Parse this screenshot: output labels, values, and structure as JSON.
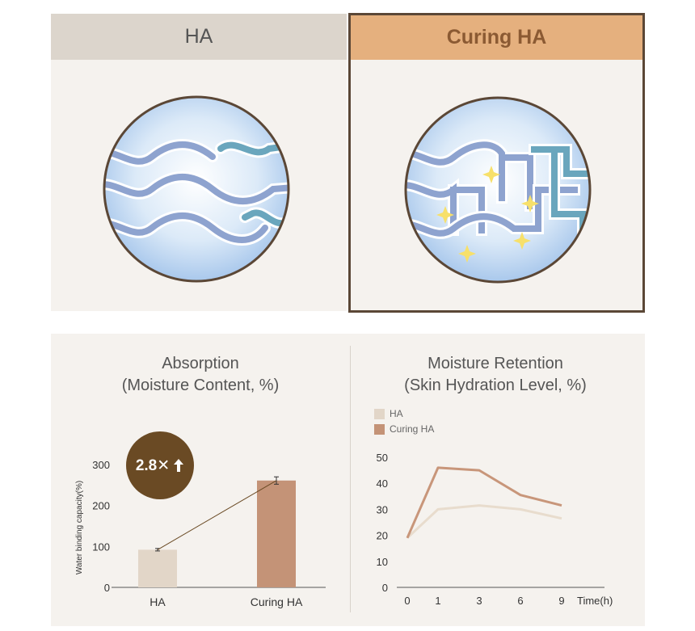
{
  "panels": {
    "ha": {
      "title": "HA"
    },
    "curing": {
      "title": "Curing HA"
    }
  },
  "colors": {
    "ha": "#e2d6c8",
    "curing": "#c49377",
    "ha_line": "#e8dccd",
    "curing_line": "#c8967a",
    "badge": "#6a4a24",
    "header_ha": "#dcd5cc",
    "header_curing": "#e5b07e",
    "border": "#5b4736"
  },
  "icons": [
    "sparkle-icon",
    "up-arrow-icon"
  ],
  "chart_data": [
    {
      "type": "bar",
      "title": "Absorption\n(Moisture Content, %)",
      "title_line1": "Absorption",
      "title_line2": "(Moisture Content, %)",
      "ylabel": "Water binding capacity(%)",
      "categories": [
        "HA",
        "Curing HA"
      ],
      "values": [
        92,
        261
      ],
      "error": [
        3,
        9
      ],
      "ylim": [
        0,
        300
      ],
      "yticks": [
        0,
        100,
        200,
        300
      ],
      "annotation": "2.8×",
      "annotation_text": "2.8✕",
      "grid": false
    },
    {
      "type": "line",
      "title": "Moisture Retention\n(Skin Hydration Level, %)",
      "title_line1": "Moisture Retention",
      "title_line2": "(Skin Hydration Level, %)",
      "x": [
        0,
        1,
        3,
        6,
        9
      ],
      "xtick_labels": [
        "0",
        "1",
        "3",
        "6",
        "9"
      ],
      "xlabel": "Time(h)",
      "ylim": [
        0,
        50
      ],
      "yticks": [
        0,
        10,
        20,
        30,
        40,
        50
      ],
      "series": [
        {
          "name": "HA",
          "values": [
            19,
            30,
            31.5,
            30,
            26.5
          ]
        },
        {
          "name": "Curing HA",
          "values": [
            19,
            46,
            45,
            35.5,
            31.5
          ]
        }
      ],
      "legend": "top-left",
      "grid": false
    }
  ]
}
